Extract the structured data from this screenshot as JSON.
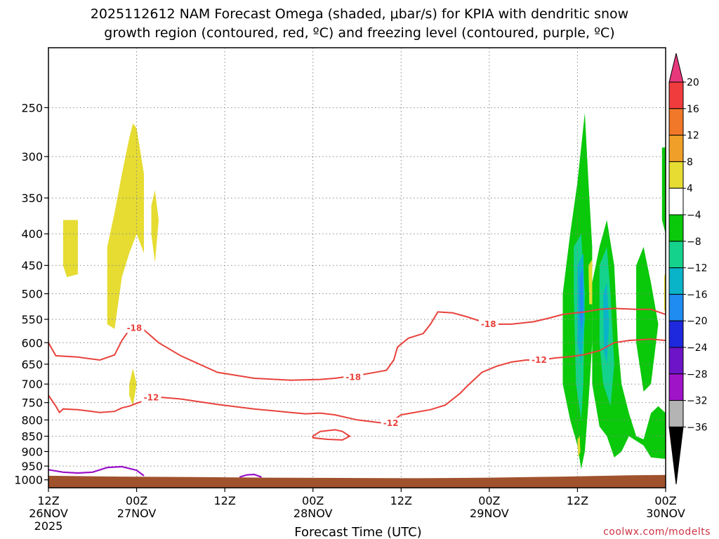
{
  "chart_data": {
    "type": "heatmap",
    "title_lines": [
      "2025112612 NAM Forecast Omega (shaded, μbar/s) for KPIA with dendritic snow",
      "growth region (contoured, red, ºC) and freezing level (contoured, purple, ºC)"
    ],
    "xlabel": "Forecast Time (UTC)",
    "credit": "coolwx.com/modelts",
    "x_ticks": [
      {
        "top": "12Z",
        "bottom": "26NOV",
        "extra": "2025",
        "hours": 0
      },
      {
        "top": "00Z",
        "bottom": "27NOV",
        "extra": "",
        "hours": 12
      },
      {
        "top": "12Z",
        "bottom": "",
        "extra": "",
        "hours": 24
      },
      {
        "top": "00Z",
        "bottom": "28NOV",
        "extra": "",
        "hours": 36
      },
      {
        "top": "12Z",
        "bottom": "",
        "extra": "",
        "hours": 48
      },
      {
        "top": "00Z",
        "bottom": "29NOV",
        "extra": "",
        "hours": 60
      },
      {
        "top": "12Z",
        "bottom": "",
        "extra": "",
        "hours": 72
      },
      {
        "top": "00Z",
        "bottom": "30NOV",
        "extra": "",
        "hours": 84
      }
    ],
    "x_range_hours": [
      0,
      84
    ],
    "y_ticks": [
      250,
      300,
      350,
      400,
      450,
      500,
      550,
      600,
      650,
      700,
      750,
      800,
      850,
      900,
      950,
      1000
    ],
    "y_range_hPa": [
      200,
      1030
    ],
    "grid": true,
    "colorbar": {
      "labels": [
        "20",
        "16",
        "12",
        "8",
        "4",
        "−4",
        "−8",
        "−12",
        "−16",
        "−20",
        "−24",
        "−28",
        "−32",
        "−36"
      ],
      "colors": [
        "#e8387c",
        "#f03c3c",
        "#f07828",
        "#f0a028",
        "#e6dc32",
        "#ffffff",
        "#0ac80a",
        "#14d28c",
        "#0ab4c8",
        "#1e8cf0",
        "#1e28dc",
        "#6e14c8",
        "#a014c8",
        "#b4b4b4",
        "#000000"
      ]
    },
    "contour_labels": {
      "dgz_top": "-18",
      "dgz_bottom": "-12"
    },
    "dgz_top_contour": [
      [
        0,
        600
      ],
      [
        1,
        630
      ],
      [
        4,
        633
      ],
      [
        7,
        640
      ],
      [
        9,
        628
      ],
      [
        10,
        595
      ],
      [
        11,
        572
      ],
      [
        12,
        568
      ],
      [
        13,
        572
      ],
      [
        15,
        600
      ],
      [
        18,
        630
      ],
      [
        23,
        670
      ],
      [
        28,
        685
      ],
      [
        33,
        690
      ],
      [
        37,
        688
      ],
      [
        39,
        685
      ],
      [
        43,
        675
      ],
      [
        46,
        665
      ],
      [
        47,
        640
      ],
      [
        47.5,
        610
      ],
      [
        49,
        590
      ],
      [
        51,
        580
      ],
      [
        52,
        560
      ],
      [
        53,
        535
      ],
      [
        55,
        537
      ],
      [
        57,
        545
      ],
      [
        60,
        560
      ],
      [
        63,
        560
      ],
      [
        66,
        555
      ],
      [
        68,
        548
      ],
      [
        70,
        540
      ],
      [
        73,
        535
      ],
      [
        75,
        530
      ],
      [
        77,
        528
      ],
      [
        80,
        530
      ],
      [
        82,
        530
      ],
      [
        84,
        540
      ]
    ],
    "dgz_bottom_contour": [
      [
        0,
        730
      ],
      [
        1,
        760
      ],
      [
        1.5,
        778
      ],
      [
        2,
        768
      ],
      [
        4,
        770
      ],
      [
        7,
        778
      ],
      [
        9,
        775
      ],
      [
        10,
        765
      ],
      [
        11,
        760
      ],
      [
        12,
        752
      ],
      [
        13,
        745
      ],
      [
        15,
        735
      ],
      [
        18,
        740
      ],
      [
        23,
        755
      ],
      [
        28,
        768
      ],
      [
        33,
        778
      ],
      [
        35,
        782
      ],
      [
        37,
        780
      ],
      [
        39,
        785
      ],
      [
        42,
        800
      ],
      [
        45,
        808
      ],
      [
        46,
        810
      ],
      [
        47,
        800
      ],
      [
        48,
        785
      ],
      [
        52,
        770
      ],
      [
        54,
        757
      ],
      [
        56,
        725
      ],
      [
        57,
        705
      ],
      [
        59,
        670
      ],
      [
        61,
        655
      ],
      [
        63,
        645
      ],
      [
        65,
        640
      ],
      [
        67,
        640
      ],
      [
        69,
        635
      ],
      [
        71,
        632
      ],
      [
        73,
        627
      ],
      [
        75,
        618
      ],
      [
        77,
        600
      ],
      [
        79,
        595
      ],
      [
        82,
        592
      ],
      [
        84,
        595
      ]
    ],
    "dgz_small_loop": [
      [
        36,
        850
      ],
      [
        37,
        835
      ],
      [
        39,
        830
      ],
      [
        40,
        835
      ],
      [
        41,
        850
      ],
      [
        40,
        862
      ],
      [
        38,
        860
      ],
      [
        36,
        855
      ],
      [
        36,
        850
      ]
    ],
    "freezing_level_contours": [
      [
        [
          0,
          963
        ],
        [
          2,
          972
        ],
        [
          4,
          975
        ],
        [
          6,
          972
        ],
        [
          8,
          955
        ],
        [
          10,
          952
        ],
        [
          12,
          965
        ],
        [
          13,
          985
        ]
      ],
      [
        [
          26,
          990
        ],
        [
          27,
          982
        ],
        [
          28,
          980
        ],
        [
          29,
          990
        ]
      ]
    ],
    "omega_regions": [
      {
        "value_class": "4",
        "color": "#e6dc32",
        "outline": [
          [
            2,
            380
          ],
          [
            4,
            380
          ],
          [
            4,
            465
          ],
          [
            2.5,
            470
          ],
          [
            2,
            450
          ],
          [
            2,
            380
          ]
        ]
      },
      {
        "value_class": "4",
        "color": "#e6dc32",
        "outline": [
          [
            8,
            560
          ],
          [
            8,
            420
          ],
          [
            9,
            370
          ],
          [
            10,
            320
          ],
          [
            11,
            280
          ],
          [
            11.5,
            265
          ],
          [
            12,
            270
          ],
          [
            13,
            320
          ],
          [
            13,
            380
          ],
          [
            13,
            430
          ],
          [
            12,
            400
          ],
          [
            11,
            430
          ],
          [
            10,
            470
          ],
          [
            9,
            570
          ],
          [
            8,
            560
          ]
        ]
      },
      {
        "value_class": "4",
        "color": "#e6dc32",
        "outline": [
          [
            14,
            360
          ],
          [
            14.5,
            340
          ],
          [
            15,
            380
          ],
          [
            14.5,
            445
          ],
          [
            14,
            400
          ],
          [
            14,
            360
          ]
        ]
      },
      {
        "value_class": "4",
        "color": "#e6dc32",
        "outline": [
          [
            11,
            700
          ],
          [
            11.5,
            660
          ],
          [
            12,
            700
          ],
          [
            11.5,
            760
          ],
          [
            11,
            730
          ],
          [
            11,
            700
          ]
        ]
      },
      {
        "value_class": "-4",
        "color": "#0ac80a",
        "outline": [
          [
            70,
            500
          ],
          [
            71,
            400
          ],
          [
            72,
            330
          ],
          [
            73,
            255
          ],
          [
            73.5,
            330
          ],
          [
            74,
            420
          ],
          [
            74,
            600
          ],
          [
            73.5,
            750
          ],
          [
            73,
            900
          ],
          [
            72.5,
            960
          ],
          [
            72,
            880
          ],
          [
            71,
            800
          ],
          [
            70,
            700
          ],
          [
            70,
            500
          ]
        ]
      },
      {
        "value_class": "-4",
        "color": "#0ac80a",
        "outline": [
          [
            74,
            480
          ],
          [
            75,
            420
          ],
          [
            76,
            380
          ],
          [
            77,
            450
          ],
          [
            77.5,
            600
          ],
          [
            78,
            700
          ],
          [
            79,
            780
          ],
          [
            80,
            850
          ],
          [
            81,
            860
          ],
          [
            82,
            780
          ],
          [
            83,
            760
          ],
          [
            84,
            780
          ],
          [
            84,
            925
          ],
          [
            82,
            920
          ],
          [
            81,
            880
          ],
          [
            79,
            850
          ],
          [
            78,
            900
          ],
          [
            77,
            920
          ],
          [
            76,
            850
          ],
          [
            75,
            820
          ],
          [
            74,
            700
          ],
          [
            74,
            480
          ]
        ]
      },
      {
        "value_class": "-4",
        "color": "#0ac80a",
        "outline": [
          [
            80,
            450
          ],
          [
            81,
            420
          ],
          [
            82,
            480
          ],
          [
            83,
            560
          ],
          [
            82,
            700
          ],
          [
            81,
            720
          ],
          [
            80,
            600
          ],
          [
            80,
            450
          ]
        ]
      },
      {
        "value_class": "-4",
        "color": "#0ac80a",
        "outline": [
          [
            83.5,
            290
          ],
          [
            84,
            290
          ],
          [
            84,
            400
          ],
          [
            83.5,
            380
          ],
          [
            83.5,
            290
          ]
        ]
      },
      {
        "value_class": "-8",
        "color": "#14d28c",
        "outline": [
          [
            71.5,
            420
          ],
          [
            72.5,
            400
          ],
          [
            73,
            500
          ],
          [
            72.8,
            700
          ],
          [
            72.5,
            800
          ],
          [
            71.8,
            700
          ],
          [
            71.5,
            500
          ],
          [
            71.5,
            420
          ]
        ]
      },
      {
        "value_class": "-8",
        "color": "#14d28c",
        "outline": [
          [
            75,
            450
          ],
          [
            76,
            420
          ],
          [
            76.5,
            500
          ],
          [
            77,
            650
          ],
          [
            76.5,
            760
          ],
          [
            75.5,
            700
          ],
          [
            75,
            600
          ],
          [
            75,
            450
          ]
        ]
      },
      {
        "value_class": "-12",
        "color": "#0ab4c8",
        "outline": [
          [
            72,
            450
          ],
          [
            72.8,
            430
          ],
          [
            73,
            550
          ],
          [
            72.5,
            650
          ],
          [
            72,
            600
          ],
          [
            72,
            450
          ]
        ]
      },
      {
        "value_class": "-12",
        "color": "#0ab4c8",
        "outline": [
          [
            75.5,
            500
          ],
          [
            76,
            480
          ],
          [
            76.3,
            560
          ],
          [
            76,
            650
          ],
          [
            75.6,
            620
          ],
          [
            75.5,
            500
          ]
        ]
      },
      {
        "value_class": "-16",
        "color": "#1e8cf0",
        "outline": [
          [
            72.3,
            470
          ],
          [
            72.7,
            455
          ],
          [
            72.8,
            540
          ],
          [
            72.5,
            580
          ],
          [
            72.3,
            540
          ],
          [
            72.3,
            470
          ]
        ]
      },
      {
        "value_class": "4",
        "color": "#e6dc32",
        "outline": [
          [
            73.5,
            450
          ],
          [
            74,
            440
          ],
          [
            74,
            520
          ],
          [
            73.6,
            520
          ],
          [
            73.5,
            450
          ]
        ]
      },
      {
        "value_class": "4",
        "color": "#e6dc32",
        "outline": [
          [
            72,
            860
          ],
          [
            72.3,
            850
          ],
          [
            72.4,
            900
          ],
          [
            72.1,
            920
          ],
          [
            72,
            860
          ]
        ]
      },
      {
        "value_class": "4",
        "color": "#e6dc32",
        "outline": [
          [
            83.8,
            470
          ],
          [
            84,
            460
          ],
          [
            84,
            540
          ],
          [
            83.8,
            530
          ],
          [
            83.8,
            470
          ]
        ]
      }
    ],
    "ground_fill_color": "#a0522d"
  }
}
